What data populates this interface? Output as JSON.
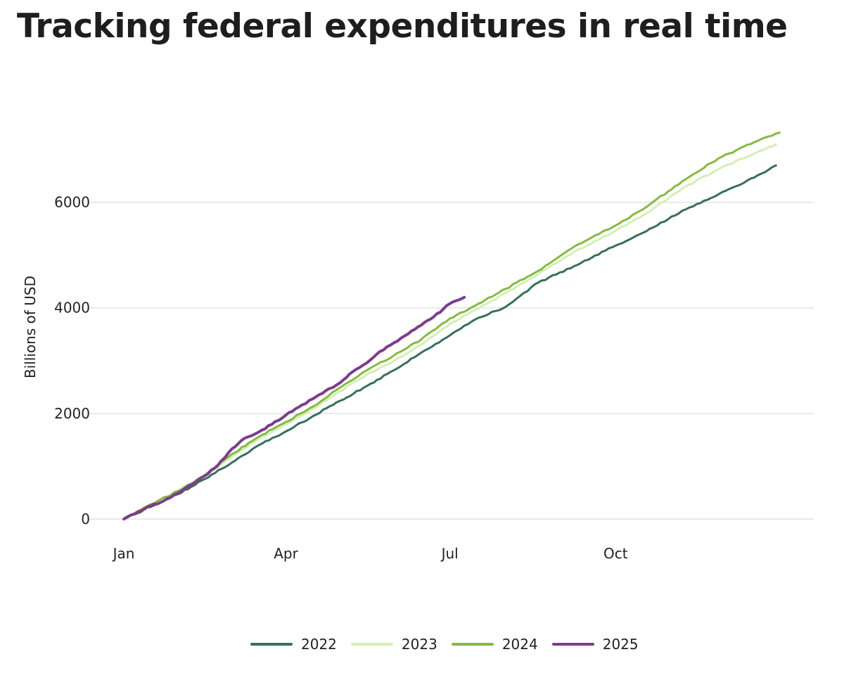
{
  "page": {
    "title": "Tracking federal expenditures in real time"
  },
  "chart_data": {
    "type": "line",
    "title": "Tracking federal expenditures in real time",
    "xlabel": "",
    "ylabel": "Billions of USD",
    "xlim": [
      0,
      365
    ],
    "ylim": [
      0,
      7700
    ],
    "x_ticks": [
      {
        "label": "Jan",
        "day": 0
      },
      {
        "label": "Apr",
        "day": 90
      },
      {
        "label": "Jul",
        "day": 181
      },
      {
        "label": "Oct",
        "day": 273
      }
    ],
    "y_ticks": [
      0,
      2000,
      4000,
      6000
    ],
    "grid": true,
    "legend_position": "bottom",
    "series": [
      {
        "name": "2022",
        "color": "#386e5d",
        "x": [
          0,
          15,
          30,
          45,
          60,
          75,
          90,
          105,
          120,
          135,
          150,
          165,
          181,
          195,
          212,
          230,
          250,
          273,
          290,
          310,
          330,
          350,
          362
        ],
        "y": [
          0,
          230,
          470,
          760,
          1070,
          1400,
          1660,
          1950,
          2240,
          2520,
          2820,
          3150,
          3480,
          3780,
          4020,
          4480,
          4790,
          5180,
          5450,
          5840,
          6150,
          6470,
          6700
        ]
      },
      {
        "name": "2023",
        "color": "#d4efb6",
        "x": [
          0,
          15,
          30,
          45,
          60,
          75,
          90,
          105,
          120,
          135,
          150,
          165,
          181,
          195,
          212,
          230,
          250,
          273,
          290,
          310,
          330,
          350,
          362
        ],
        "y": [
          0,
          260,
          510,
          820,
          1180,
          1520,
          1800,
          2090,
          2420,
          2740,
          3000,
          3300,
          3700,
          3960,
          4280,
          4640,
          5060,
          5460,
          5790,
          6260,
          6630,
          6920,
          7100
        ]
      },
      {
        "name": "2024",
        "color": "#87b943",
        "x": [
          0,
          15,
          30,
          45,
          60,
          75,
          90,
          105,
          120,
          135,
          150,
          165,
          181,
          195,
          212,
          230,
          250,
          273,
          290,
          310,
          330,
          350,
          364
        ],
        "y": [
          0,
          280,
          530,
          830,
          1230,
          1560,
          1840,
          2130,
          2490,
          2820,
          3100,
          3400,
          3800,
          4040,
          4360,
          4700,
          5160,
          5560,
          5910,
          6400,
          6830,
          7140,
          7320
        ]
      },
      {
        "name": "2025",
        "color": "#7d3c8c",
        "x": [
          0,
          8,
          15,
          22,
          30,
          38,
          45,
          52,
          60,
          67,
          75,
          82,
          90,
          97,
          105,
          112,
          120,
          127,
          135,
          142,
          150,
          158,
          165,
          172,
          181,
          184,
          189
        ],
        "y": [
          0,
          140,
          250,
          340,
          490,
          660,
          820,
          1010,
          1330,
          1530,
          1650,
          1790,
          1970,
          2120,
          2280,
          2430,
          2580,
          2790,
          2960,
          3170,
          3340,
          3510,
          3670,
          3830,
          4080,
          4130,
          4200
        ]
      }
    ]
  }
}
